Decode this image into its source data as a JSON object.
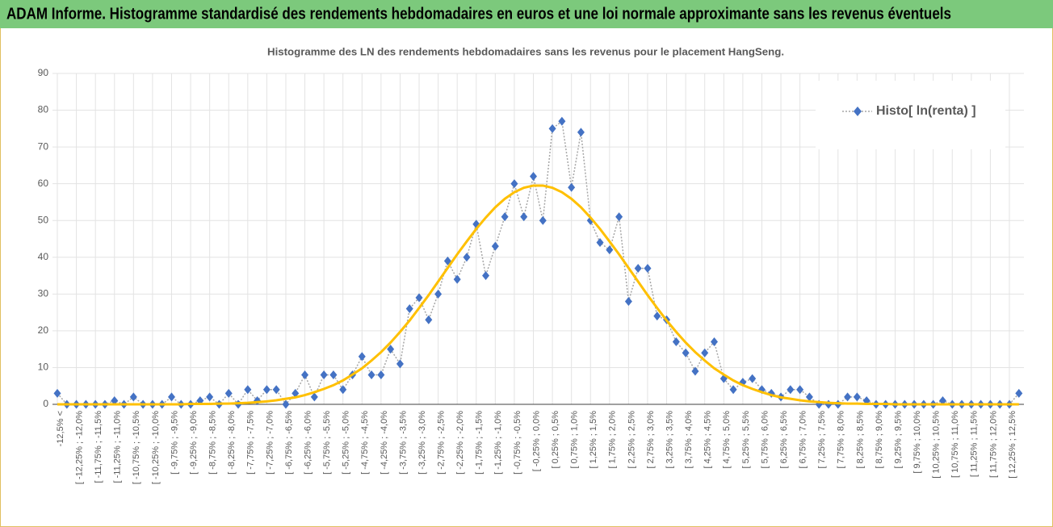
{
  "chart_data": {
    "type": "line",
    "title": "ADAM Informe. Histogramme standardisé des rendements hebdomadaires en euros et une loi normale approximante sans les revenus éventuels",
    "subtitle": "Histogramme des LN des rendements hebdomadaires sans les revenus pour le placement HangSeng.",
    "categories": [
      "-12,5% <",
      null,
      "[ -12,25% ; -12,0%",
      null,
      "[ -11,75% ; -11,5%",
      null,
      "[ -11,25% ; -11,0%",
      null,
      "[ -10,75% ; -10,5%",
      null,
      "[ -10,25% ; -10,0%",
      null,
      "[ -9,75% ; -9,5%",
      null,
      "[ -9,25% ; -9,0%",
      null,
      "[ -8,75% ; -8,5%",
      null,
      "[ -8,25% ; -8,0%",
      null,
      "[ -7,75% ; -7,5%",
      null,
      "[ -7,25% ; -7,0%",
      null,
      "[ -6,75% ; -6,5%",
      null,
      "[ -6,25% ; -6,0%",
      null,
      "[ -5,75% ; -5,5%",
      null,
      "[ -5,25% ; -5,0%",
      null,
      "[ -4,75% ; -4,5%",
      null,
      "[ -4,25% ; -4,0%",
      null,
      "[ -3,75% ; -3,5%",
      null,
      "[ -3,25% ; -3,0%",
      null,
      "[ -2,75% ; -2,5%",
      null,
      "[ -2,25% ; -2,0%",
      null,
      "[ -1,75% ; -1,5%",
      null,
      "[ -1,25% ; -1,0%",
      null,
      "[ -0,75% ; -0,5%",
      null,
      "[ -0,25% ; 0,0%",
      null,
      "[ 0,25% ; 0,5%",
      null,
      "[ 0,75% ; 1,0%",
      null,
      "[ 1,25% ; 1,5%",
      null,
      "[ 1,75% ; 2,0%",
      null,
      "[ 2,25% ; 2,5%",
      null,
      "[ 2,75% ; 3,0%",
      null,
      "[ 3,25% ; 3,5%",
      null,
      "[ 3,75% ; 4,0%",
      null,
      "[ 4,25% ; 4,5%",
      null,
      "[ 4,75% ; 5,0%",
      null,
      "[ 5,25% ; 5,5%",
      null,
      "[ 5,75% ; 6,0%",
      null,
      "[ 6,25% ; 6,5%",
      null,
      "[ 6,75% ; 7,0%",
      null,
      "[ 7,25% ; 7,5%",
      null,
      "[ 7,75% ; 8,0%",
      null,
      "[ 8,25% ; 8,5%",
      null,
      "[ 8,75% ; 9,0%",
      null,
      "[ 9,25% ; 9,5%",
      null,
      "[ 9,75% ; 10,0%",
      null,
      "[ 10,25% ; 10,5%",
      null,
      "[ 10,75% ; 11,0%",
      null,
      "[ 11,25% ; 11,5%",
      null,
      "[ 11,75% ; 12,0%",
      null,
      "[ 12,25% ; 12,5%",
      null
    ],
    "series": [
      {
        "name": "Histo[ ln(renta) ]",
        "color": "#4472c4",
        "line_color": "#a6a6a6",
        "line_style": "dotted",
        "marker": "diamond",
        "values": [
          3,
          0,
          0,
          0,
          0,
          0,
          1,
          0,
          2,
          0,
          0,
          0,
          2,
          0,
          0,
          1,
          2,
          0,
          3,
          0,
          4,
          1,
          4,
          4,
          0,
          3,
          8,
          2,
          8,
          8,
          4,
          8,
          13,
          8,
          8,
          15,
          11,
          26,
          29,
          23,
          30,
          39,
          34,
          40,
          49,
          35,
          43,
          51,
          60,
          51,
          62,
          50,
          75,
          77,
          59,
          74,
          50,
          44,
          42,
          51,
          28,
          37,
          37,
          24,
          23,
          17,
          14,
          9,
          14,
          17,
          7,
          4,
          6,
          7,
          4,
          3,
          2,
          4,
          4,
          2,
          0,
          0,
          0,
          2,
          2,
          1,
          0,
          0,
          0,
          0,
          0,
          0,
          0,
          1,
          0,
          0,
          0,
          0,
          0,
          0,
          0,
          3
        ]
      },
      {
        "color": "#ffc000",
        "line_style": "solid",
        "marker": "none",
        "values": [
          0,
          0,
          0,
          0,
          0,
          0,
          0,
          0,
          0,
          0,
          0,
          0,
          0,
          0,
          0.1,
          0.1,
          0.1,
          0.2,
          0.2,
          0.3,
          0.4,
          0.6,
          0.8,
          1.1,
          1.5,
          1.9,
          2.5,
          3.3,
          4.2,
          5.2,
          6.5,
          8.1,
          9.8,
          11.9,
          14.2,
          16.8,
          19.7,
          22.8,
          26.2,
          29.7,
          33.4,
          37.1,
          40.8,
          44.3,
          47.7,
          50.8,
          53.6,
          55.9,
          57.7,
          58.9,
          59.5,
          59.5,
          58.9,
          57.7,
          55.9,
          53.6,
          50.8,
          47.7,
          44.3,
          40.8,
          37.1,
          33.4,
          29.7,
          26.2,
          22.8,
          19.7,
          16.8,
          14.2,
          11.9,
          9.8,
          8.1,
          6.5,
          5.2,
          4.2,
          3.3,
          2.5,
          1.9,
          1.5,
          1.1,
          0.8,
          0.6,
          0.4,
          0.3,
          0.2,
          0.2,
          0.1,
          0.1,
          0.1,
          0,
          0,
          0,
          0,
          0,
          0,
          0,
          0,
          0,
          0,
          0,
          0,
          0,
          0
        ]
      }
    ],
    "ylim": [
      0,
      90
    ],
    "yticks": [
      0,
      10,
      20,
      30,
      40,
      50,
      60,
      70,
      80,
      90
    ],
    "grid": true,
    "legend": "top-right"
  }
}
